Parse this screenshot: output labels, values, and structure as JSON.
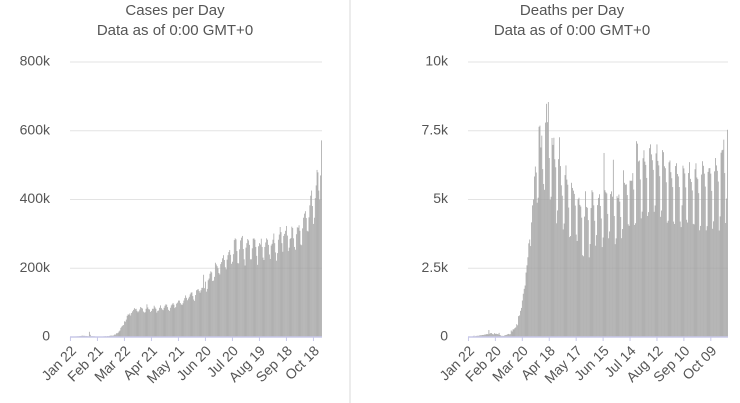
{
  "chart_data": [
    {
      "type": "bar",
      "title": "Cases per Day",
      "subtitle": "Data as of 0:00 GMT+0",
      "categories": [
        "Jan 22",
        null,
        null,
        null,
        null,
        null,
        null,
        null,
        null,
        null,
        null,
        null,
        null,
        null,
        null,
        null,
        null,
        null,
        null,
        null,
        null,
        null,
        null,
        null,
        null,
        null,
        null,
        null,
        null,
        null,
        "Feb 21",
        null,
        null,
        null,
        null,
        null,
        null,
        null,
        null,
        null,
        null,
        null,
        null,
        null,
        null,
        null,
        null,
        null,
        null,
        null,
        null,
        null,
        null,
        null,
        null,
        null,
        null,
        null,
        null,
        null,
        "Mar 22",
        null,
        null,
        null,
        null,
        null,
        null,
        null,
        null,
        null,
        null,
        null,
        null,
        null,
        null,
        null,
        null,
        null,
        null,
        null,
        null,
        null,
        null,
        null,
        null,
        null,
        null,
        null,
        null,
        null,
        "Apr 21",
        null,
        null,
        null,
        null,
        null,
        null,
        null,
        null,
        null,
        null,
        null,
        null,
        null,
        null,
        null,
        null,
        null,
        null,
        null,
        null,
        null,
        null,
        null,
        null,
        null,
        null,
        null,
        null,
        null,
        "May 21",
        null,
        null,
        null,
        null,
        null,
        null,
        null,
        null,
        null,
        null,
        null,
        null,
        null,
        null,
        null,
        null,
        null,
        null,
        null,
        null,
        null,
        null,
        null,
        null,
        null,
        null,
        null,
        null,
        null,
        "Jun 20",
        null,
        null,
        null,
        null,
        null,
        null,
        null,
        null,
        null,
        null,
        null,
        null,
        null,
        null,
        null,
        null,
        null,
        null,
        null,
        null,
        null,
        null,
        null,
        null,
        null,
        null,
        null,
        null,
        null,
        "Jul 20",
        null,
        null,
        null,
        null,
        null,
        null,
        null,
        null,
        null,
        null,
        null,
        null,
        null,
        null,
        null,
        null,
        null,
        null,
        null,
        null,
        null,
        null,
        null,
        null,
        null,
        null,
        null,
        null,
        null,
        "Aug 19",
        null,
        null,
        null,
        null,
        null,
        null,
        null,
        null,
        null,
        null,
        null,
        null,
        null,
        null,
        null,
        null,
        null,
        null,
        null,
        null,
        null,
        null,
        null,
        null,
        null,
        null,
        null,
        null,
        null,
        "Sep 18",
        null,
        null,
        null,
        null,
        null,
        null,
        null,
        null,
        null,
        null,
        null,
        null,
        null,
        null,
        null,
        null,
        null,
        null,
        null,
        null,
        null,
        null,
        null,
        null,
        null,
        null,
        null,
        null,
        null,
        "Oct 18",
        null,
        null,
        null,
        null,
        null,
        null,
        null,
        null,
        null
      ],
      "values": [
        600,
        100,
        300,
        600,
        700,
        800,
        1500,
        1700,
        2000,
        2100,
        2600,
        2800,
        3200,
        3900,
        3700,
        3200,
        3500,
        2700,
        3000,
        2500,
        2000,
        15100,
        6400,
        2100,
        2600,
        2100,
        2100,
        1900,
        600,
        1000,
        1000,
        900,
        900,
        800,
        900,
        1100,
        1300,
        1800,
        2000,
        2400,
        1900,
        2700,
        2300,
        2800,
        3900,
        4000,
        4100,
        3900,
        4600,
        7100,
        7200,
        10800,
        10900,
        12500,
        16200,
        18900,
        26600,
        30200,
        33000,
        34800,
        45600,
        44600,
        50700,
        61500,
        65800,
        64900,
        68600,
        62400,
        70000,
        74700,
        79000,
        84000,
        81000,
        82000,
        76000,
        72000,
        75000,
        80000,
        87000,
        85000,
        83000,
        74000,
        71000,
        72000,
        82000,
        95000,
        86000,
        81000,
        80000,
        73000,
        76000,
        82000,
        82000,
        91000,
        86000,
        82000,
        71000,
        76000,
        77000,
        85000,
        92000,
        84000,
        80000,
        78000,
        85000,
        91000,
        95000,
        94000,
        87000,
        79000,
        76000,
        85000,
        92000,
        95000,
        99000,
        94000,
        84000,
        87000,
        97000,
        100000,
        106000,
        106000,
        99000,
        95000,
        93000,
        98000,
        106000,
        113000,
        121000,
        114000,
        107000,
        112000,
        117000,
        124000,
        129000,
        130000,
        119000,
        109000,
        105000,
        122000,
        136000,
        138000,
        139000,
        134000,
        129000,
        136000,
        143000,
        143000,
        181000,
        142000,
        161000,
        132000,
        140000,
        165000,
        170000,
        184000,
        191000,
        188000,
        163000,
        164000,
        175000,
        216000,
        211000,
        206000,
        200000,
        186000,
        182000,
        212000,
        218000,
        229000,
        238000,
        224000,
        203000,
        197000,
        225000,
        238000,
        247000,
        253000,
        239000,
        213000,
        219000,
        241000,
        282000,
        287000,
        284000,
        250000,
        215000,
        214000,
        255000,
        281000,
        289000,
        294000,
        256000,
        226000,
        208000,
        260000,
        273000,
        285000,
        281000,
        268000,
        226000,
        226000,
        258000,
        286000,
        287000,
        283000,
        262000,
        236000,
        210000,
        264000,
        273000,
        269000,
        286000,
        262000,
        231000,
        224000,
        262000,
        275000,
        287000,
        283000,
        268000,
        240000,
        227000,
        266000,
        271000,
        283000,
        301000,
        273000,
        246000,
        222000,
        244000,
        283000,
        298000,
        320000,
        305000,
        273000,
        248000,
        294000,
        300000,
        309000,
        323000,
        295000,
        250000,
        260000,
        285000,
        288000,
        321000,
        317000,
        287000,
        262000,
        254000,
        299000,
        319000,
        318000,
        325000,
        309000,
        269000,
        267000,
        316000,
        347000,
        359000,
        366000,
        346000,
        309000,
        307000,
        348000,
        383000,
        411000,
        426000,
        381000,
        329000,
        347000,
        404000,
        441000,
        486000,
        479000,
        426000,
        400000,
        470000,
        572000
      ],
      "color": "#a3a3a3",
      "ylim": [
        0,
        800000
      ],
      "yticks": [
        0,
        {
          "value": 200000,
          "label": "200k"
        },
        {
          "value": 400000,
          "label": "400k"
        },
        {
          "value": 600000,
          "label": "600k"
        },
        {
          "value": 800000,
          "label": "800k"
        }
      ],
      "grid": true
    },
    {
      "type": "bar",
      "title": "Deaths per Day",
      "subtitle": "Data as of 0:00 GMT+0",
      "categories": [
        "Jan 22",
        null,
        null,
        null,
        null,
        null,
        null,
        null,
        null,
        null,
        null,
        null,
        null,
        null,
        null,
        null,
        null,
        null,
        null,
        null,
        null,
        null,
        null,
        null,
        null,
        null,
        null,
        null,
        null,
        "Feb 20",
        null,
        null,
        null,
        null,
        null,
        null,
        null,
        null,
        null,
        null,
        null,
        null,
        null,
        null,
        null,
        null,
        null,
        null,
        null,
        null,
        null,
        null,
        null,
        null,
        null,
        null,
        null,
        null,
        "Mar 20",
        null,
        null,
        null,
        null,
        null,
        null,
        null,
        null,
        null,
        null,
        null,
        null,
        null,
        null,
        null,
        null,
        null,
        null,
        null,
        null,
        null,
        null,
        null,
        null,
        null,
        null,
        null,
        null,
        "Apr 18",
        null,
        null,
        null,
        null,
        null,
        null,
        null,
        null,
        null,
        null,
        null,
        null,
        null,
        null,
        null,
        null,
        null,
        null,
        null,
        null,
        null,
        null,
        null,
        null,
        null,
        null,
        null,
        null,
        "May 17",
        null,
        null,
        null,
        null,
        null,
        null,
        null,
        null,
        null,
        null,
        null,
        null,
        null,
        null,
        null,
        null,
        null,
        null,
        null,
        null,
        null,
        null,
        null,
        null,
        null,
        null,
        null,
        null,
        "Jun 15",
        null,
        null,
        null,
        null,
        null,
        null,
        null,
        null,
        null,
        null,
        null,
        null,
        null,
        null,
        null,
        null,
        null,
        null,
        null,
        null,
        null,
        null,
        null,
        null,
        null,
        null,
        null,
        null,
        "Jul 14",
        null,
        null,
        null,
        null,
        null,
        null,
        null,
        null,
        null,
        null,
        null,
        null,
        null,
        null,
        null,
        null,
        null,
        null,
        null,
        null,
        null,
        null,
        null,
        null,
        null,
        null,
        null,
        null,
        "Aug 12",
        null,
        null,
        null,
        null,
        null,
        null,
        null,
        null,
        null,
        null,
        null,
        null,
        null,
        null,
        null,
        null,
        null,
        null,
        null,
        null,
        null,
        null,
        null,
        null,
        null,
        null,
        null,
        null,
        "Sep 10",
        null,
        null,
        null,
        null,
        null,
        null,
        null,
        null,
        null,
        null,
        null,
        null,
        null,
        null,
        null,
        null,
        null,
        null,
        null,
        null,
        null,
        null,
        null,
        null,
        null,
        null,
        null,
        null,
        "Oct 09",
        null,
        null,
        null,
        null,
        null,
        null,
        null,
        null,
        null,
        null,
        null,
        null,
        null,
        null,
        null,
        null,
        null,
        null
      ],
      "values": [
        17,
        1,
        8,
        16,
        14,
        26,
        49,
        2,
        38,
        42,
        46,
        45,
        57,
        64,
        66,
        73,
        73,
        86,
        89,
        97,
        108,
        97,
        254,
        121,
        143,
        142,
        106,
        98,
        139,
        115,
        118,
        109,
        97,
        150,
        71,
        52,
        29,
        44,
        37,
        59,
        68,
        78,
        98,
        112,
        98,
        104,
        237,
        199,
        277,
        279,
        325,
        352,
        465,
        426,
        759,
        784,
        952,
        1058,
        1327,
        1573,
        1752,
        1872,
        2343,
        2606,
        2899,
        3406,
        3545,
        3307,
        4168,
        4787,
        5004,
        5837,
        6199,
        5981,
        4883,
        5066,
        7644,
        7687,
        6893,
        7322,
        6106,
        5564,
        5353,
        7797,
        8480,
        7811,
        8544,
        6508,
        4994,
        5101,
        7237,
        6986,
        7246,
        6463,
        6171,
        4134,
        4602,
        6467,
        7263,
        6216,
        5516,
        5137,
        3912,
        4127,
        5887,
        6239,
        5724,
        5537,
        4707,
        3633,
        3672,
        5608,
        5421,
        5323,
        5204,
        4779,
        3726,
        3491,
        5009,
        5064,
        4805,
        4744,
        4339,
        2974,
        2937,
        4379,
        5300,
        4730,
        4698,
        4250,
        2896,
        3380,
        4690,
        5337,
        5264,
        4788,
        4225,
        3321,
        3707,
        4796,
        5058,
        5191,
        4765,
        4310,
        3270,
        3618,
        6692,
        5337,
        5262,
        5221,
        4475,
        3590,
        3839,
        5197,
        5296,
        5103,
        6446,
        4400,
        3376,
        3587,
        5120,
        5051,
        5180,
        4923,
        4364,
        3594,
        3926,
        6063,
        5606,
        5538,
        5551,
        5162,
        4101,
        4044,
        5687,
        5679,
        5686,
        5960,
        5362,
        4073,
        4137,
        7120,
        7030,
        6383,
        6418,
        5730,
        4315,
        4559,
        6501,
        6790,
        6378,
        6256,
        5784,
        4400,
        4540,
        6866,
        7005,
        6641,
        6427,
        6077,
        4553,
        4783,
        6677,
        7004,
        6403,
        6241,
        5848,
        4370,
        4599,
        6796,
        6721,
        6208,
        6137,
        5627,
        4155,
        4228,
        6353,
        6418,
        5994,
        5773,
        5452,
        4197,
        4111,
        6217,
        6319,
        5928,
        5840,
        5453,
        4199,
        3997,
        4788,
        6231,
        6131,
        5948,
        5441,
        4263,
        4163,
        5963,
        6359,
        5751,
        5637,
        5328,
        4114,
        4096,
        6100,
        6317,
        5800,
        5741,
        5232,
        3880,
        4040,
        5907,
        6392,
        6226,
        5940,
        5470,
        3878,
        4032,
        6004,
        6135,
        6143,
        5941,
        5312,
        3936,
        4207,
        6025,
        6508,
        6240,
        6043,
        5653,
        3872,
        4386,
        6702,
        6791,
        6807,
        7176,
        5962,
        4145,
        5034,
        7536
      ],
      "color": "#a3a3a3",
      "ylim": [
        0,
        10000
      ],
      "yticks": [
        0,
        {
          "value": 2500,
          "label": "2.5k"
        },
        {
          "value": 5000,
          "label": "5k"
        },
        {
          "value": 7500,
          "label": "7.5k"
        },
        {
          "value": 10000,
          "label": "10k"
        }
      ],
      "grid": true
    }
  ]
}
